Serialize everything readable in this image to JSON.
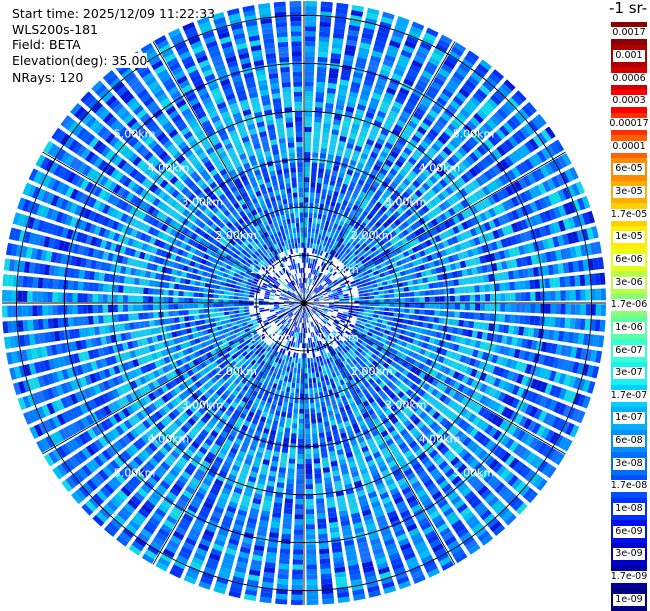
{
  "header": {
    "start_time": "Start time: 2025/12/09 11:22:33",
    "instrument": "WLS200s-181",
    "field": "Field: BETA",
    "elevation": "Elevation(deg): 35.00",
    "nrays": "NRays: 120"
  },
  "units_label": "-1 sr-",
  "chart_data": {
    "type": "heatmap",
    "projection": "polar-ppi",
    "field": "BETA",
    "elevation_deg": 35.0,
    "nrays": 120,
    "range_rings_km": [
      1.0,
      2.0,
      3.0,
      4.0,
      5.0
    ],
    "range_ring_labels": [
      "1.00km",
      "2.00km",
      "3.00km",
      "4.00km",
      "5.00km"
    ],
    "max_range_km": 6.3,
    "colorbar": {
      "labels": [
        "0.0017",
        "0.001",
        "0.0006",
        "0.0003",
        "0.00017",
        "0.0001",
        "6e-05",
        "3e-05",
        "1.7e-05",
        "1e-05",
        "6e-06",
        "3e-06",
        "1.7e-06",
        "1e-06",
        "6e-07",
        "3e-07",
        "1.7e-07",
        "1e-07",
        "6e-08",
        "3e-08",
        "1.7e-08",
        "1e-08",
        "6e-09",
        "3e-09",
        "1.7e-09",
        "1e-09"
      ],
      "colors": [
        "#8b0000",
        "#b00000",
        "#d40000",
        "#ff0000",
        "#ff3000",
        "#ff6000",
        "#ff8c00",
        "#ffae00",
        "#ffd000",
        "#ffee00",
        "#e8ff1a",
        "#b8ff48",
        "#88ff78",
        "#5cffa4",
        "#38ffd0",
        "#18f2f2",
        "#00d0ff",
        "#00b0ff",
        "#0090ff",
        "#0070ff",
        "#0050ff",
        "#0030ff",
        "#0010e8",
        "#0000c8",
        "#0000a0",
        "#000080"
      ]
    },
    "dominant_value_range": [
      "1e-07",
      "1.7e-08"
    ]
  }
}
